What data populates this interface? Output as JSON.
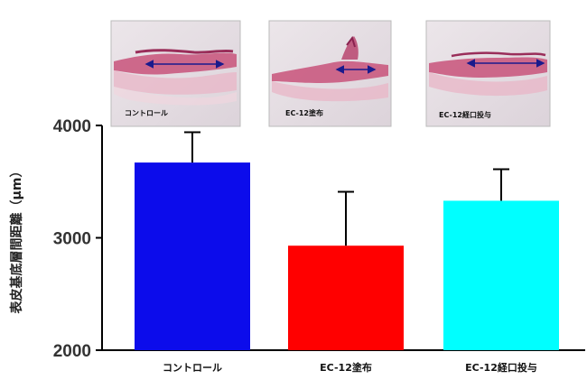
{
  "chart_data": {
    "type": "bar",
    "ylabel": "表皮基底層間距離（μm）",
    "ylim": [
      2000,
      4000
    ],
    "yticks": [
      2000,
      3000,
      4000
    ],
    "grid": false,
    "categories": [
      "コントロール",
      "EC-12塗布",
      "EC-12経口投与"
    ],
    "values": [
      3670,
      2930,
      3330
    ],
    "errors": [
      270,
      480,
      280
    ],
    "colors": [
      "#0c0ceb",
      "#ff0000",
      "#00ffff"
    ]
  },
  "micrographs": [
    {
      "caption": "コントロール",
      "icon": "tissue-micrograph"
    },
    {
      "caption": "EC-12塗布",
      "icon": "tissue-micrograph"
    },
    {
      "caption": "EC-12経口投与",
      "icon": "tissue-micrograph"
    }
  ]
}
